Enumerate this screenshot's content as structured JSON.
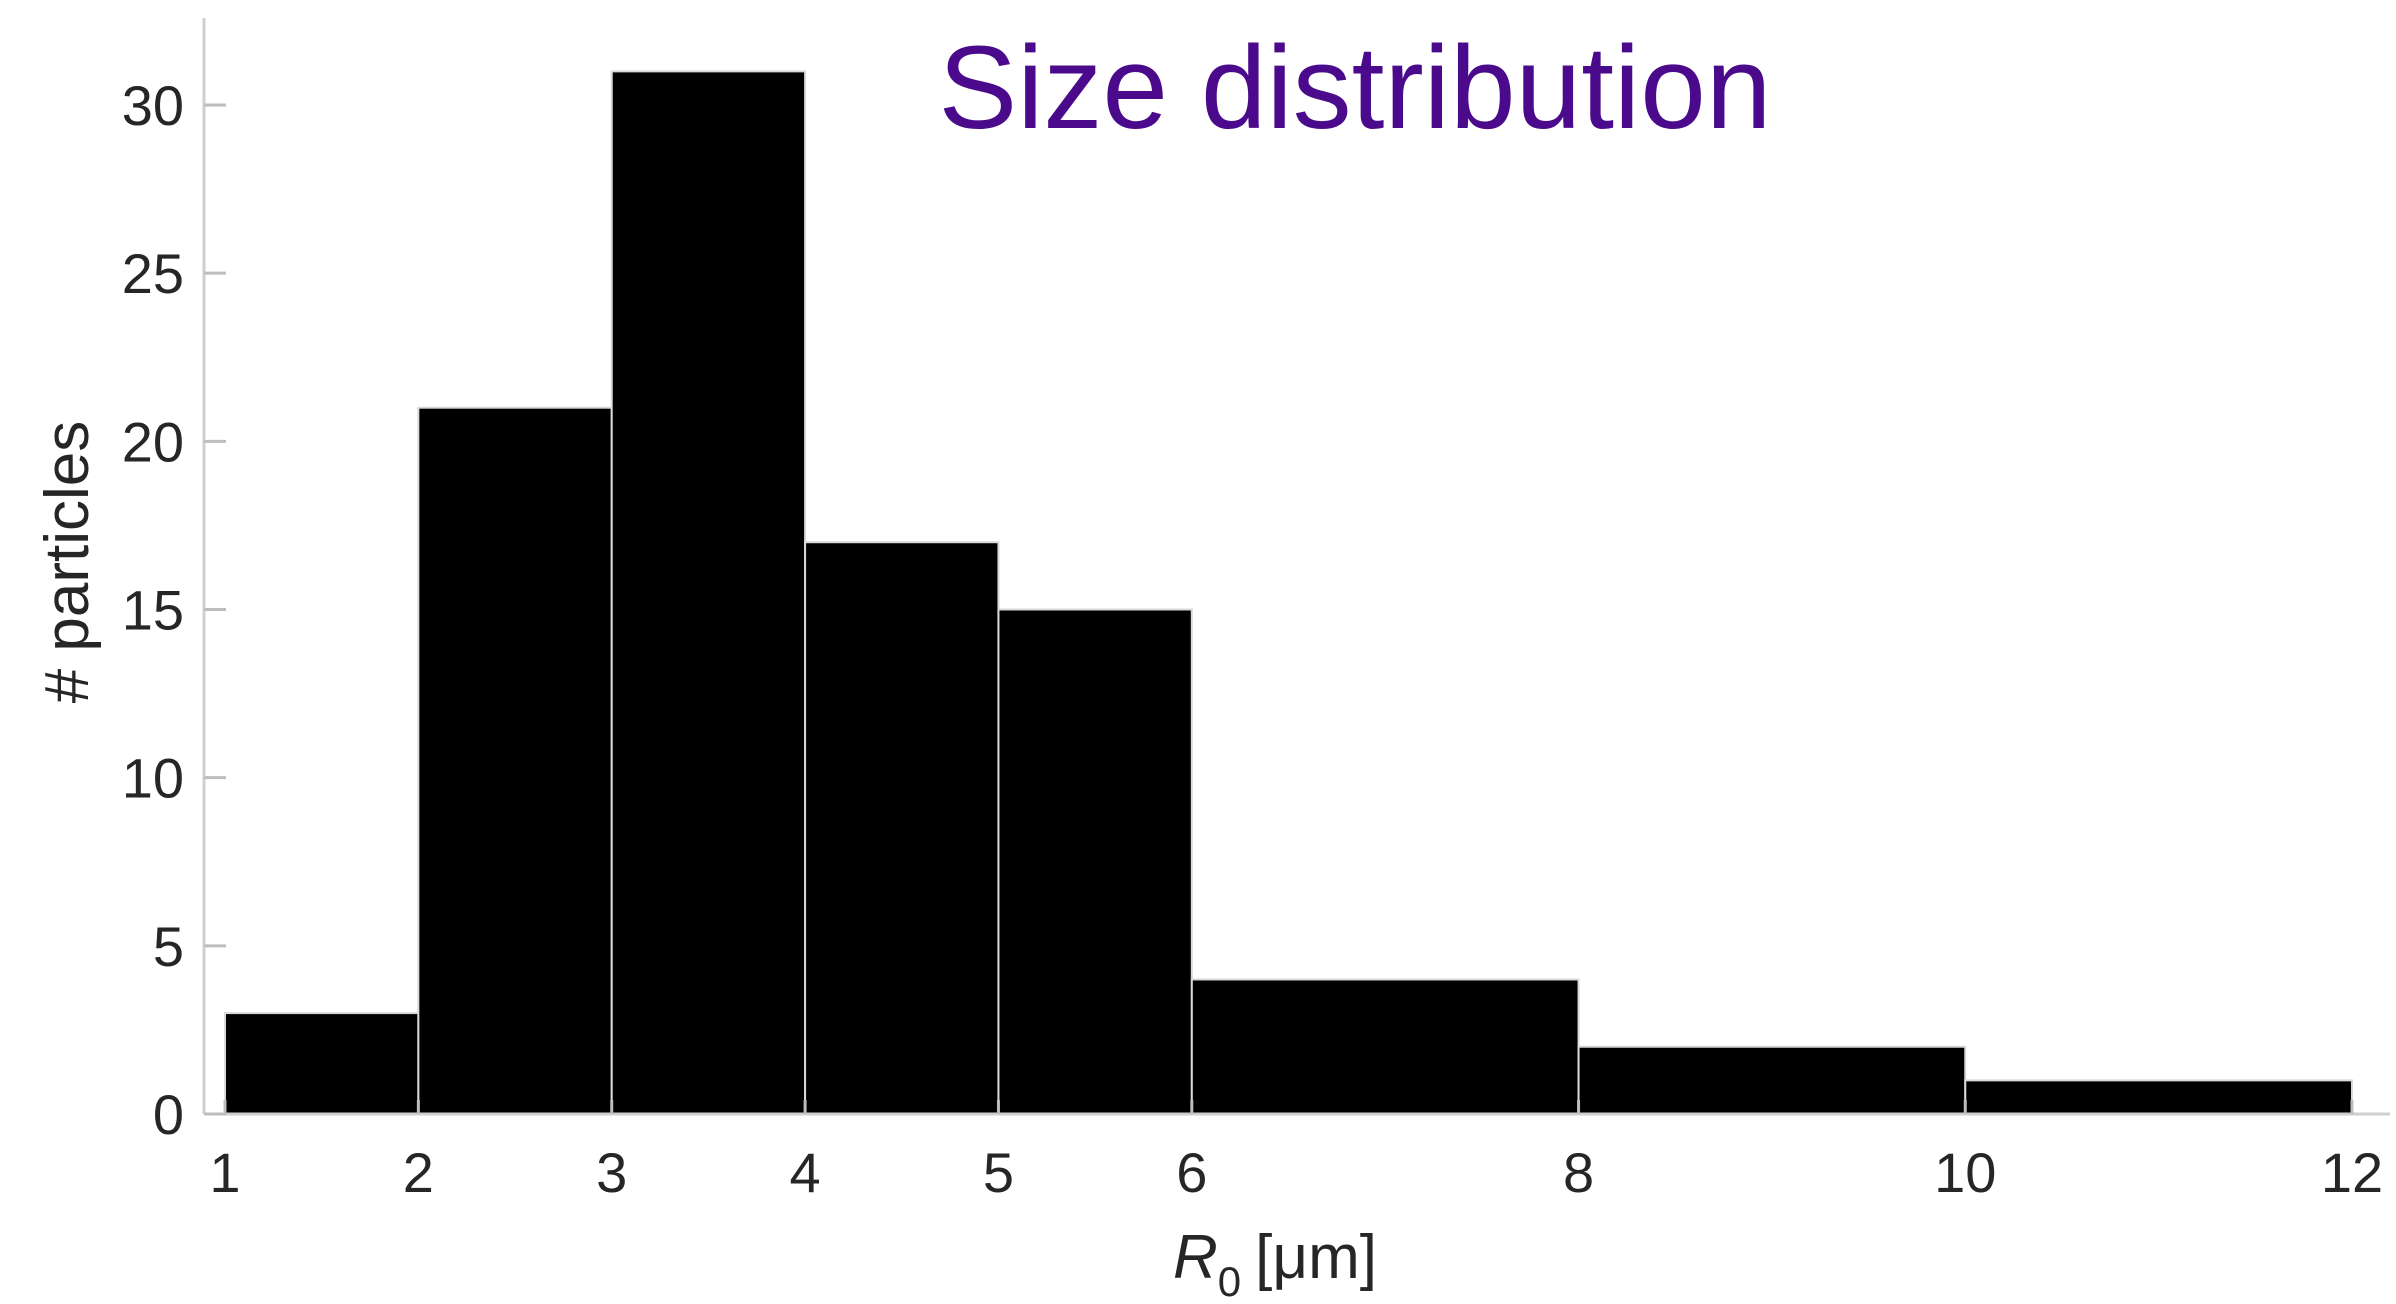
{
  "chart_data": {
    "type": "bar",
    "subtype": "histogram",
    "title": "Size distribution",
    "title_color": "#4b0a8c",
    "bar_color": "#000000",
    "bar_edge_color": "#d9d9d9",
    "axis_color": "#262626",
    "xlabel": {
      "symbol": "R",
      "subscript": "0",
      "unit": "[μm]"
    },
    "ylabel": "# particles",
    "bins": [
      {
        "x0": 1,
        "x1": 2,
        "count": 3
      },
      {
        "x0": 2,
        "x1": 3,
        "count": 21
      },
      {
        "x0": 3,
        "x1": 4,
        "count": 31
      },
      {
        "x0": 4,
        "x1": 5,
        "count": 17
      },
      {
        "x0": 5,
        "x1": 6,
        "count": 15
      },
      {
        "x0": 6,
        "x1": 8,
        "count": 4
      },
      {
        "x0": 8,
        "x1": 10,
        "count": 2
      },
      {
        "x0": 10,
        "x1": 12,
        "count": 1
      }
    ],
    "xticks": [
      "1",
      "2",
      "3",
      "4",
      "5",
      "6",
      "8",
      "10",
      "12"
    ],
    "yticks": [
      "0",
      "5",
      "10",
      "15",
      "20",
      "25",
      "30"
    ],
    "xlim": [
      1,
      12
    ],
    "ylim": [
      0,
      32.5
    ],
    "grid": false,
    "legend": false
  }
}
